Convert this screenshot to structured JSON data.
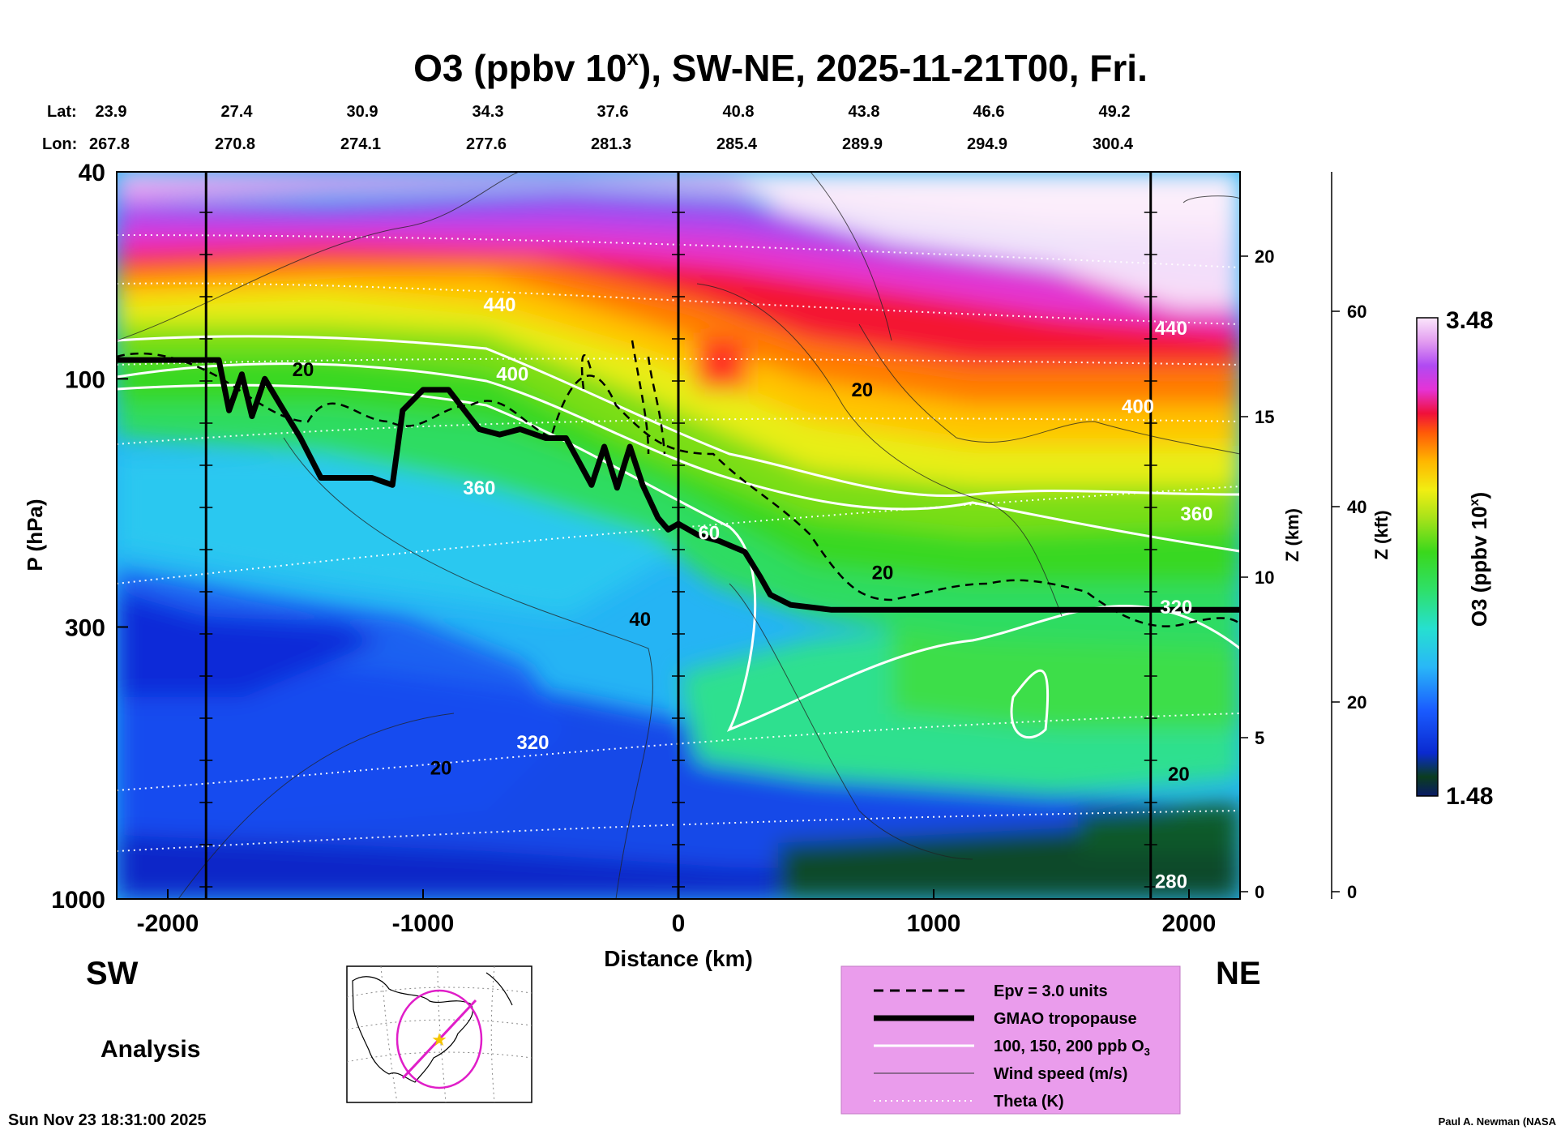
{
  "chart_data": {
    "type": "heatmap",
    "title_main": "O3 (ppbv 10",
    "title_exp": "x",
    "title_rest": "), SW-NE, 2025-11-21T00, Fri.",
    "header": {
      "lat_label": "Lat:",
      "lon_label": "Lon:",
      "lat": [
        "23.9",
        "27.4",
        "30.9",
        "34.3",
        "37.6",
        "40.8",
        "43.8",
        "46.6",
        "49.2"
      ],
      "lon": [
        "267.8",
        "270.8",
        "274.1",
        "277.6",
        "281.3",
        "285.4",
        "289.9",
        "294.9",
        "300.4"
      ]
    },
    "x_axis": {
      "label": "Distance (km)",
      "range": [
        -2200,
        2200
      ],
      "ticks": [
        -2000,
        -1000,
        0,
        1000,
        2000
      ],
      "tick_labels": [
        "-2000",
        "-1000",
        "0",
        "1000",
        "2000"
      ],
      "station_lines": [
        -1850,
        0,
        1850
      ]
    },
    "y_axis": {
      "label": "P (hPa)",
      "scale": "log",
      "range": [
        1000,
        40
      ],
      "ticks": [
        40,
        100,
        300,
        1000
      ],
      "tick_labels": [
        "40",
        "100",
        "300",
        "1000"
      ]
    },
    "z_km_axis": {
      "label": "Z (km)",
      "ticks": [
        0,
        5,
        10,
        15,
        20
      ],
      "tick_labels": [
        "0",
        "5",
        "10",
        "15",
        "20"
      ]
    },
    "z_kft_axis": {
      "label": "Z (kft)",
      "ticks": [
        0,
        20,
        40,
        60
      ],
      "tick_labels": [
        "0",
        "20",
        "40",
        "60"
      ]
    },
    "colorbar": {
      "label": "O3 (ppbv 10",
      "label_exp": "x",
      "label_end": ")",
      "min": 1.48,
      "max": 3.48,
      "min_label": "1.48",
      "max_label": "3.48"
    },
    "tropopause": {
      "x": [
        -2200,
        -1800,
        -1760,
        -1710,
        -1670,
        -1620,
        -1560,
        -1480,
        -1400,
        -1200,
        -1120,
        -1080,
        -1000,
        -900,
        -820,
        -780,
        -700,
        -620,
        -520,
        -440,
        -340,
        -290,
        -240,
        -190,
        -140,
        -80,
        -40,
        0,
        80,
        160,
        260,
        320,
        360,
        440,
        600,
        900,
        1200,
        1600,
        2000,
        2200
      ],
      "p": [
        92,
        92,
        115,
        98,
        118,
        100,
        112,
        130,
        155,
        155,
        160,
        115,
        105,
        105,
        118,
        125,
        128,
        125,
        130,
        130,
        160,
        135,
        162,
        135,
        160,
        185,
        195,
        190,
        200,
        205,
        215,
        240,
        260,
        272,
        278,
        278,
        278,
        278,
        278,
        278
      ]
    },
    "theta_labels": [
      {
        "text": "440",
        "x": -700,
        "p": 72
      },
      {
        "text": "400",
        "x": -650,
        "p": 98
      },
      {
        "text": "360",
        "x": -780,
        "p": 162
      },
      {
        "text": "320",
        "x": -570,
        "p": 500
      },
      {
        "text": "440",
        "x": 1930,
        "p": 80
      },
      {
        "text": "400",
        "x": 1800,
        "p": 113
      },
      {
        "text": "360",
        "x": 2030,
        "p": 182
      },
      {
        "text": "320",
        "x": 1950,
        "p": 275
      },
      {
        "text": "280",
        "x": 1930,
        "p": 925
      },
      {
        "text": "60",
        "x": 120,
        "p": 198
      }
    ],
    "wind_labels": [
      {
        "text": "20",
        "x": -1470,
        "p": 96
      },
      {
        "text": "20",
        "x": 720,
        "p": 105
      },
      {
        "text": "20",
        "x": 800,
        "p": 236
      },
      {
        "text": "40",
        "x": -150,
        "p": 290
      },
      {
        "text": "20",
        "x": -930,
        "p": 560
      },
      {
        "text": "20",
        "x": 1960,
        "p": 575
      }
    ],
    "legend": {
      "items": [
        {
          "label": "Epv = 3.0 units",
          "style": "dashed"
        },
        {
          "label": "GMAO tropopause",
          "style": "thick"
        },
        {
          "label": "100, 150, 200 ppb O",
          "label_sub": "3",
          "style": "white"
        },
        {
          "label": "Wind speed (m/s)",
          "style": "thin"
        },
        {
          "label": "Theta (K)",
          "style": "dotted"
        }
      ]
    },
    "left_end": "SW",
    "right_end": "NE",
    "analysis_label": "Analysis",
    "timestamp": "Sun Nov 23 18:31:00 2025",
    "credit": "Paul A. Newman (NASA"
  }
}
